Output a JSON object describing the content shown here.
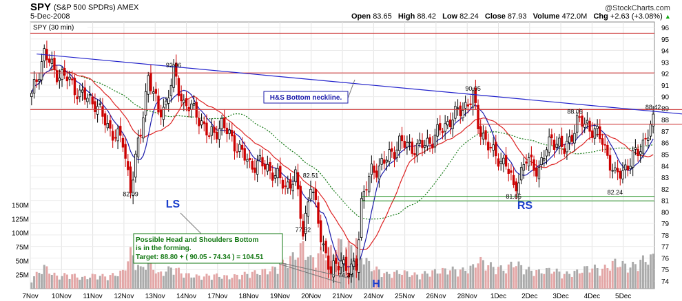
{
  "header": {
    "symbol": "SPY",
    "description": "(S&P 500 SPDRs) AMEX",
    "date": "5-Dec-2008",
    "open_label": "Open",
    "open": "83.65",
    "high_label": "High",
    "high": "88.42",
    "low_label": "Low",
    "low": "82.24",
    "close_label": "Close",
    "close": "87.93",
    "volume_label": "Volume",
    "volume": "472.0M",
    "chg_label": "Chg",
    "chg": "+2.63 (+3.08%)",
    "chg_icon": "up-triangle-icon",
    "watermark": "@StockCharts.com"
  },
  "chart_data": {
    "type": "candlestick",
    "legend": "SPY (30 min)",
    "x_ticks": [
      "7Nov",
      "10Nov",
      "11Nov",
      "12Nov",
      "13Nov",
      "14Nov",
      "17Nov",
      "18Nov",
      "19Nov",
      "20Nov",
      "21Nov",
      "24Nov",
      "25Nov",
      "26Nov",
      "28Nov",
      "1Dec",
      "2Dec",
      "3Dec",
      "4Dec",
      "5Dec"
    ],
    "y_ticks": [
      "74",
      "75",
      "76",
      "77",
      "78",
      "79",
      "80",
      "81",
      "82",
      "83",
      "84",
      "85",
      "86",
      "87",
      "88",
      "89",
      "90",
      "91",
      "92",
      "93",
      "94",
      "95",
      "96"
    ],
    "ylim": [
      73.5,
      96.5
    ],
    "volume_ticks": [
      "25M",
      "50M",
      "75M",
      "100M",
      "125M",
      "150M"
    ],
    "volume_max": 150,
    "colors": {
      "up": "#000000",
      "down": "#cc0000",
      "sma_fast": "#1a1aaa",
      "sma_mid": "#dd2222",
      "sma_slow": "#117711",
      "neckline": "#2222cc",
      "resistance": "#cc3333",
      "support": "#118811",
      "vol_up": "#aaaaaa",
      "vol_down": "#e3a6a6"
    },
    "price_path": [
      [
        0,
        90.0
      ],
      [
        5,
        93.8
      ],
      [
        9,
        92.2
      ],
      [
        14,
        91.6
      ],
      [
        19,
        90.2
      ],
      [
        25,
        89.5
      ],
      [
        30,
        87.4
      ],
      [
        36,
        86.0
      ],
      [
        39,
        82.1
      ],
      [
        43,
        86.9
      ],
      [
        46,
        91.9
      ],
      [
        50,
        88.6
      ],
      [
        53,
        89.4
      ],
      [
        56,
        92.0
      ],
      [
        60,
        89.4
      ],
      [
        65,
        88.6
      ],
      [
        70,
        86.5
      ],
      [
        75,
        87.6
      ],
      [
        80,
        86.0
      ],
      [
        86,
        84.1
      ],
      [
        90,
        84.2
      ],
      [
        95,
        83.5
      ],
      [
        100,
        82.2
      ],
      [
        104,
        83.0
      ],
      [
        107,
        78.2
      ],
      [
        110,
        82.5
      ],
      [
        114,
        78.0
      ],
      [
        118,
        74.6
      ],
      [
        122,
        76.0
      ],
      [
        125,
        74.6
      ],
      [
        128,
        75.5
      ],
      [
        130,
        80.9
      ],
      [
        134,
        83.5
      ],
      [
        139,
        84.3
      ],
      [
        145,
        86.0
      ],
      [
        152,
        85.5
      ],
      [
        158,
        86.3
      ],
      [
        165,
        88.0
      ],
      [
        170,
        89.0
      ],
      [
        174,
        90.0
      ],
      [
        176,
        87.5
      ],
      [
        182,
        85.0
      ],
      [
        187,
        84.2
      ],
      [
        190,
        82.0
      ],
      [
        195,
        84.5
      ],
      [
        200,
        83.7
      ],
      [
        205,
        86.5
      ],
      [
        210,
        85.3
      ],
      [
        215,
        87.8
      ],
      [
        219,
        87.6
      ],
      [
        225,
        86.2
      ],
      [
        230,
        83.0
      ],
      [
        236,
        84.3
      ],
      [
        241,
        86.0
      ],
      [
        245,
        87.7
      ]
    ],
    "volume_path": [
      [
        0,
        20
      ],
      [
        5,
        45
      ],
      [
        10,
        25
      ],
      [
        15,
        30
      ],
      [
        20,
        22
      ],
      [
        25,
        28
      ],
      [
        30,
        25
      ],
      [
        36,
        35
      ],
      [
        39,
        75
      ],
      [
        43,
        40
      ],
      [
        46,
        60
      ],
      [
        50,
        30
      ],
      [
        56,
        45
      ],
      [
        60,
        30
      ],
      [
        66,
        25
      ],
      [
        72,
        28
      ],
      [
        78,
        24
      ],
      [
        84,
        30
      ],
      [
        90,
        35
      ],
      [
        95,
        40
      ],
      [
        100,
        55
      ],
      [
        104,
        70
      ],
      [
        107,
        90
      ],
      [
        110,
        60
      ],
      [
        114,
        75
      ],
      [
        118,
        80
      ],
      [
        122,
        95
      ],
      [
        125,
        85
      ],
      [
        128,
        100
      ],
      [
        130,
        70
      ],
      [
        134,
        45
      ],
      [
        140,
        30
      ],
      [
        146,
        35
      ],
      [
        152,
        28
      ],
      [
        158,
        35
      ],
      [
        165,
        40
      ],
      [
        170,
        38
      ],
      [
        174,
        45
      ],
      [
        176,
        60
      ],
      [
        182,
        45
      ],
      [
        187,
        40
      ],
      [
        190,
        55
      ],
      [
        195,
        40
      ],
      [
        200,
        35
      ],
      [
        205,
        40
      ],
      [
        210,
        30
      ],
      [
        215,
        35
      ],
      [
        220,
        45
      ],
      [
        225,
        40
      ],
      [
        230,
        55
      ],
      [
        236,
        45
      ],
      [
        241,
        60
      ],
      [
        245,
        65
      ]
    ],
    "annotations": {
      "p1": "92.06",
      "p2": "82.09",
      "p3": "82.51",
      "p4": "77.92",
      "p5": "74.34",
      "p6": "90.05",
      "p7": "81.86",
      "p8": "88.05",
      "p9": "82.24",
      "p10": "88.42",
      "left_shoulder": "LS",
      "head": "H",
      "right_shoulder": "RS",
      "neckline_label": "H&S Bottom neckline.",
      "note_line1": "Possible Head and Shoulders Bottom",
      "note_line2": "is in the forming.",
      "note_line3": "Target: 88.80 + ( 90.05 - 74.34 ) = 104.51"
    }
  }
}
